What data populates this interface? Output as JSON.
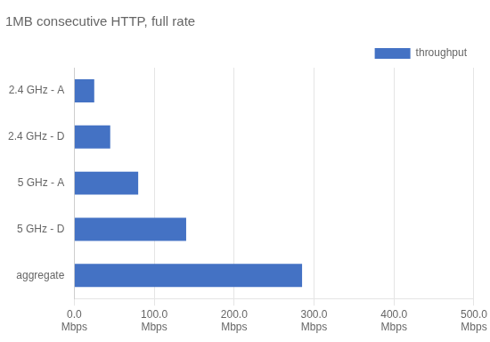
{
  "chart_data": {
    "type": "bar",
    "orientation": "horizontal",
    "title": "1MB consecutive HTTP, full rate",
    "categories": [
      "2.4 GHz - A",
      "2.4 GHz - D",
      "5 GHz - A",
      "5 GHz - D",
      "aggregate"
    ],
    "series": [
      {
        "name": "throughput",
        "color": "#4472c4",
        "values": [
          25,
          45,
          80,
          140,
          285
        ]
      }
    ],
    "xlim": [
      0,
      500
    ],
    "xticks": [
      {
        "value": 0,
        "label": "0.0\nMbps"
      },
      {
        "value": 100,
        "label": "100.0\nMbps"
      },
      {
        "value": 200,
        "label": "200.0\nMbps"
      },
      {
        "value": 300,
        "label": "300.0\nMbps"
      },
      {
        "value": 400,
        "label": "400.0\nMbps"
      },
      {
        "value": 500,
        "label": "500.0\nMbps"
      }
    ],
    "grid": true,
    "legend": "upper right"
  }
}
